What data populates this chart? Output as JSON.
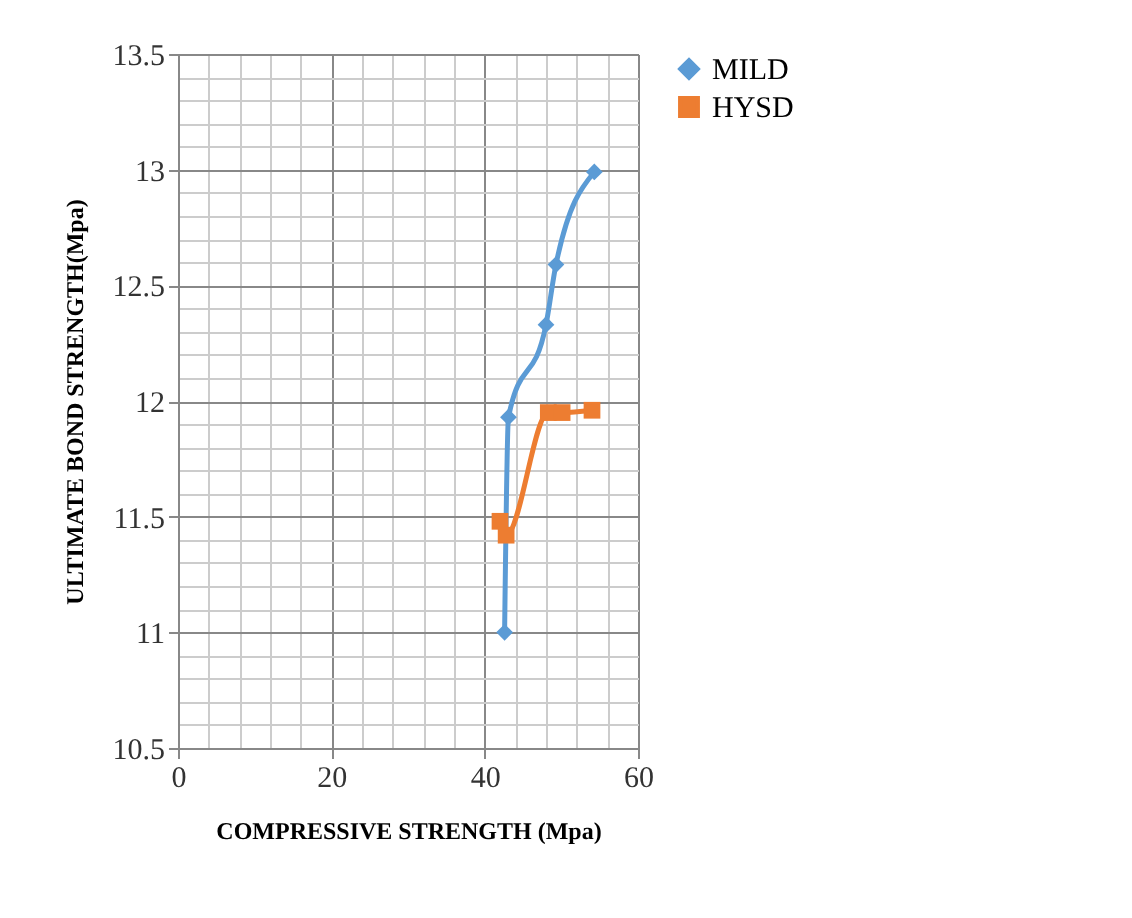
{
  "chart_data": {
    "type": "line",
    "xlabel": "COMPRESSIVE  STRENGTH  (Mpa)",
    "ylabel": "ULTIMATE BOND STRENGTH(Mpa)",
    "xlim": [
      0,
      60
    ],
    "ylim": [
      10.5,
      13.5
    ],
    "xticks": [
      0,
      {
        "value": 4,
        "label": null
      },
      {
        "value": 8,
        "label": null
      },
      {
        "value": 12,
        "label": null
      },
      {
        "value": 16,
        "label": null
      },
      20,
      {
        "value": 24,
        "label": null
      },
      {
        "value": 28,
        "label": null
      },
      {
        "value": 32,
        "label": null
      },
      {
        "value": 36,
        "label": null
      },
      40,
      {
        "value": 44,
        "label": null
      },
      {
        "value": 48,
        "label": null
      },
      {
        "value": 52,
        "label": null
      },
      {
        "value": 56,
        "label": null
      },
      60
    ],
    "yticks": [
      10.5,
      {
        "value": 10.6,
        "label": null
      },
      {
        "value": 10.7,
        "label": null
      },
      {
        "value": 10.8,
        "label": null
      },
      {
        "value": 10.9,
        "label": null
      },
      11,
      {
        "value": 11.1,
        "label": null
      },
      {
        "value": 11.2,
        "label": null
      },
      {
        "value": 11.3,
        "label": null
      },
      {
        "value": 11.4,
        "label": null
      },
      11.5,
      {
        "value": 11.6,
        "label": null
      },
      {
        "value": 11.7,
        "label": null
      },
      {
        "value": 11.8,
        "label": null
      },
      {
        "value": 11.9,
        "label": null
      },
      12,
      {
        "value": 12.1,
        "label": null
      },
      {
        "value": 12.2,
        "label": null
      },
      {
        "value": 12.3,
        "label": null
      },
      {
        "value": 12.4,
        "label": null
      },
      12.5,
      {
        "value": 12.6,
        "label": null
      },
      {
        "value": 12.7,
        "label": null
      },
      {
        "value": 12.8,
        "label": null
      },
      {
        "value": 12.9,
        "label": null
      },
      13,
      {
        "value": 13.1,
        "label": null
      },
      {
        "value": 13.2,
        "label": null
      },
      {
        "value": 13.3,
        "label": null
      },
      {
        "value": 13.4,
        "label": null
      },
      13.5
    ],
    "grid": true,
    "legend": "right",
    "series": [
      {
        "name": "MILD",
        "color": "#5b9bd5",
        "marker": "diamond",
        "x": [
          42.6,
          43.1,
          48.0,
          49.3,
          54.3
        ],
        "values": [
          11.0,
          11.93,
          12.33,
          12.59,
          12.99
        ]
      },
      {
        "name": "HYSD",
        "color": "#ed7d31",
        "marker": "square",
        "x": [
          42.0,
          42.8,
          48.3,
          50.1,
          54.0
        ],
        "values": [
          11.48,
          11.42,
          11.95,
          11.95,
          11.96
        ]
      }
    ]
  }
}
